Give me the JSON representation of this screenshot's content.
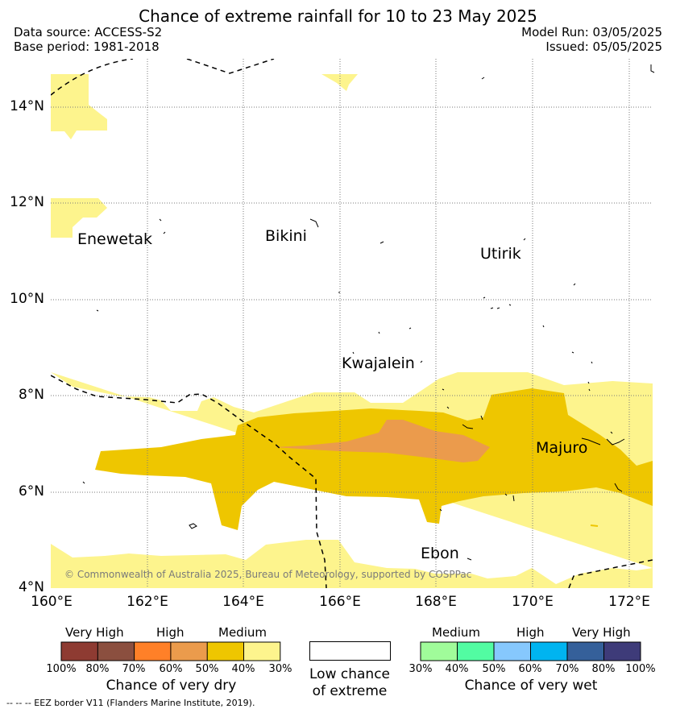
{
  "title": "Chance of extreme rainfall for 10 to 23 May 2025",
  "data_source": "Data source: ACCESS-S2",
  "base_period": "Base period: 1981-2018",
  "model_run": "Model Run: 03/05/2025",
  "issued": "Issued: 05/05/2025",
  "copyright": "© Commonwealth of Australia 2025, Bureau of Meteorology, supported by COSPPac",
  "eez_note": "-- -- -- EEZ border V11 (Flanders Marine Institute, 2019).",
  "axes": {
    "lon_labels": [
      "160°E",
      "162°E",
      "164°E",
      "166°E",
      "168°E",
      "170°E",
      "172°E"
    ],
    "lat_labels": [
      "14°N",
      "12°N",
      "10°N",
      "8°N",
      "6°N",
      "4°N"
    ]
  },
  "places": {
    "enewetak": "Enewetak",
    "bikini": "Bikini",
    "utirik": "Utirik",
    "kwajalein": "Kwajalein",
    "majuro": "Majuro",
    "ebon": "Ebon"
  },
  "colors": {
    "dry_very_high_1": "#8e3b32",
    "dry_very_high_2": "#8b4f3f",
    "dry_high_1": "#ff8028",
    "dry_high_2": "#eb9b4c",
    "dry_medium_1": "#eec600",
    "dry_medium_2": "#fdf48d",
    "wet_medium_1": "#a0fc9a",
    "wet_medium_2": "#52fca2",
    "wet_high_1": "#86c8fd",
    "wet_high_2": "#00b4f0",
    "wet_very_high_1": "#35609a",
    "wet_very_high_2": "#3e3b79"
  },
  "dry_legend": {
    "headers": [
      "Very High",
      "High",
      "Medium"
    ],
    "ticks": [
      "100%",
      "80%",
      "70%",
      "60%",
      "50%",
      "40%",
      "30%"
    ],
    "title": "Chance of very dry"
  },
  "low_legend": {
    "line1": "Low chance",
    "line2": "of extreme"
  },
  "wet_legend": {
    "headers": [
      "Medium",
      "High",
      "Very High"
    ],
    "ticks": [
      "30%",
      "40%",
      "50%",
      "60%",
      "70%",
      "80%",
      "100%"
    ],
    "title": "Chance of very wet"
  }
}
